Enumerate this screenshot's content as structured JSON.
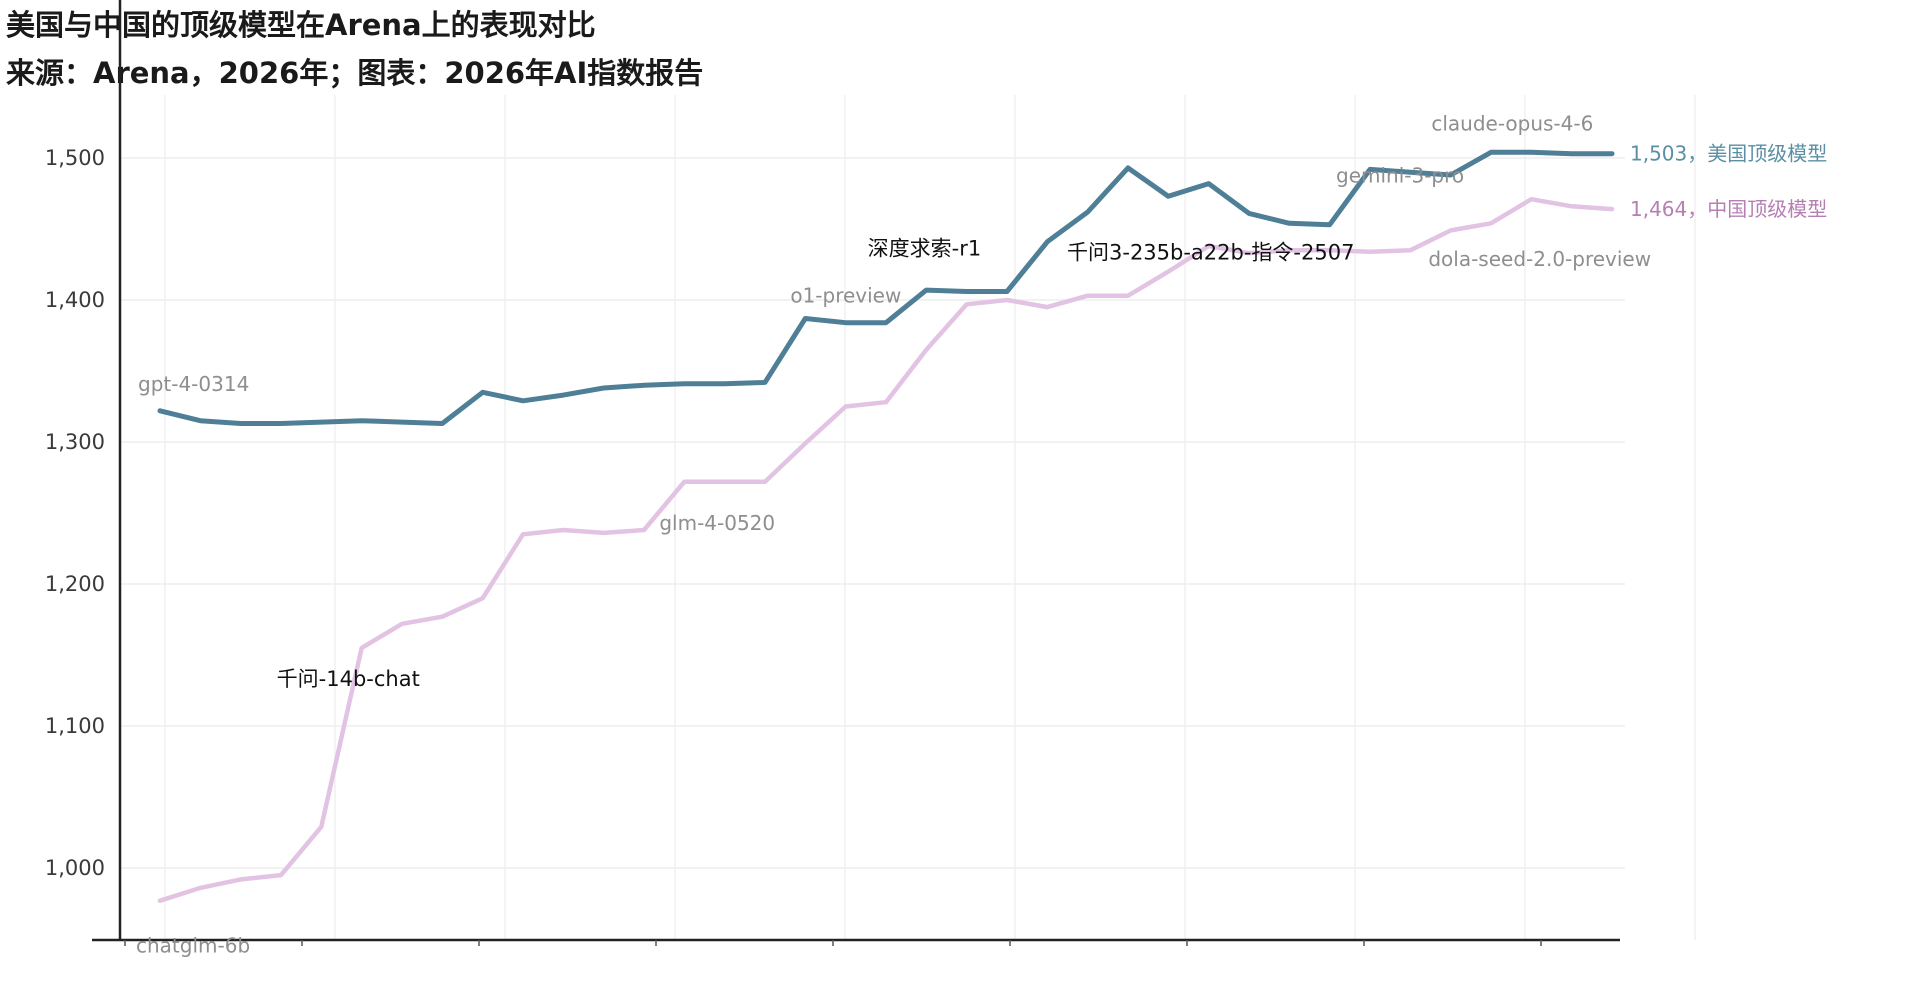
{
  "chart_data": {
    "type": "line",
    "title": "美国与中国的顶级模型在Arena上的表现对比",
    "subtitle": "来源：Arena，2026年；图表：2026年AI指数报告",
    "ylim": [
      940,
      1560
    ],
    "yticks": [
      1000,
      1100,
      1200,
      1300,
      1400,
      1500
    ],
    "ytick_labels": [
      "1,000",
      "1,100",
      "1,200",
      "1,300",
      "1,400",
      "1,500"
    ],
    "x_index_range": [
      0,
      36
    ],
    "xtick_labels": [
      "",
      "",
      "",
      "",
      "",
      "",
      "",
      "",
      ""
    ],
    "colors": {
      "us": "#4f7f97",
      "cn": "#e2c3e3"
    },
    "series": [
      {
        "key": "us",
        "end_label": "1,503，美国顶级模型",
        "x": [
          0,
          1,
          2,
          3,
          4,
          5,
          6,
          7,
          8,
          9,
          10,
          11,
          12,
          13,
          14,
          15,
          16,
          17,
          18,
          19,
          20,
          21,
          22,
          23,
          24,
          25,
          26,
          27,
          28,
          29,
          30,
          31,
          32,
          33,
          34,
          35,
          36
        ],
        "y": [
          1322,
          1315,
          1313,
          1313,
          1314,
          1315,
          1314,
          1313,
          1335,
          1329,
          1333,
          1338,
          1340,
          1341,
          1341,
          1342,
          1387,
          1384,
          1384,
          1407,
          1406,
          1406,
          1441,
          1462,
          1493,
          1473,
          1482,
          1461,
          1454,
          1453,
          1492,
          1490,
          1488,
          1504,
          1504,
          1503,
          1503
        ]
      },
      {
        "key": "cn",
        "end_label": "1,464，中国顶级模型",
        "x": [
          0,
          1,
          2,
          3,
          4,
          5,
          6,
          7,
          8,
          9,
          10,
          11,
          12,
          13,
          14,
          15,
          16,
          17,
          18,
          19,
          20,
          21,
          22,
          23,
          24,
          25,
          26,
          27,
          28,
          29,
          30,
          31,
          32,
          33,
          34,
          35,
          36
        ],
        "y": [
          977,
          986,
          992,
          995,
          1029,
          1155,
          1172,
          1177,
          1190,
          1235,
          1238,
          1236,
          1238,
          1272,
          1272,
          1272,
          1299,
          1325,
          1328,
          1365,
          1397,
          1400,
          1395,
          1403,
          1403,
          1420,
          1438,
          1433,
          1435,
          1435,
          1434,
          1435,
          1449,
          1454,
          1471,
          1466,
          1464
        ]
      }
    ],
    "annotations": [
      {
        "text": "gpt-4-0314",
        "x": 0,
        "y": 1322,
        "style": "gray"
      },
      {
        "text": "chatglm-6b",
        "x": 0,
        "y": 977,
        "style": "gray"
      },
      {
        "text": "千问-14b-chat",
        "x": 5,
        "y": 1155,
        "style": "black"
      },
      {
        "text": "glm-4-0520",
        "x": 13,
        "y": 1272,
        "style": "gray"
      },
      {
        "text": "o1-preview",
        "x": 16,
        "y": 1387,
        "style": "gray"
      },
      {
        "text": "深度求索-r1",
        "x": 20,
        "y": 1397,
        "style": "black"
      },
      {
        "text": "千问3-235b-a22b-指令-2507",
        "x": 24,
        "y": 1403,
        "style": "black"
      },
      {
        "text": "gemini-3-pro",
        "x": 30,
        "y": 1492,
        "style": "gray"
      },
      {
        "text": "claude-opus-4-6",
        "x": 34,
        "y": 1504,
        "style": "gray"
      },
      {
        "text": "dola-seed-2.0-preview",
        "x": 34,
        "y": 1471,
        "style": "gray"
      }
    ]
  }
}
